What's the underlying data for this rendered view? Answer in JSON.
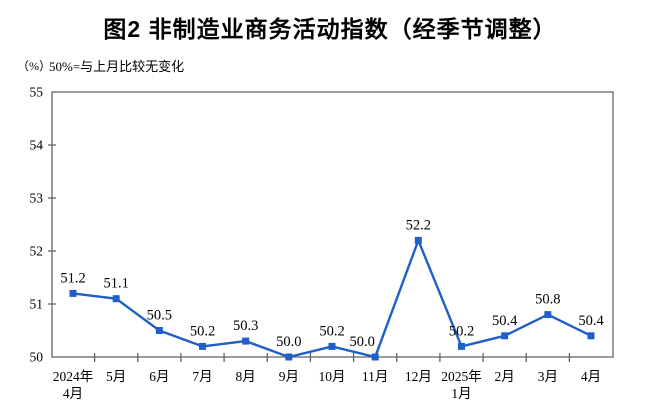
{
  "chart_data": {
    "type": "line",
    "title": "图2 非制造业商务活动指数（经季节调整）",
    "unit_label": "（%）",
    "note": "50%=与上月比较无变化",
    "categories": [
      "2024年\n4月",
      "5月",
      "6月",
      "7月",
      "8月",
      "9月",
      "10月",
      "11月",
      "12月",
      "2025年\n1月",
      "2月",
      "3月",
      "4月"
    ],
    "values": [
      51.2,
      51.1,
      50.5,
      50.2,
      50.3,
      50.0,
      50.2,
      50.0,
      52.2,
      50.2,
      50.4,
      50.8,
      50.4
    ],
    "point_labels": [
      "51.2",
      "51.1",
      "50.5",
      "50.2",
      "50.3",
      "50.0",
      "50.2",
      "50.0",
      "52.2",
      "50.2",
      "50.4",
      "50.8",
      "50.4"
    ],
    "ylim": [
      50,
      55
    ],
    "ytick_interval": 1,
    "xlabel": "",
    "ylabel": "",
    "grid": false,
    "legend": "none",
    "line_color": "#1E5FC8",
    "marker": "square",
    "axis_color": "#595959",
    "text_color": "#000000"
  }
}
